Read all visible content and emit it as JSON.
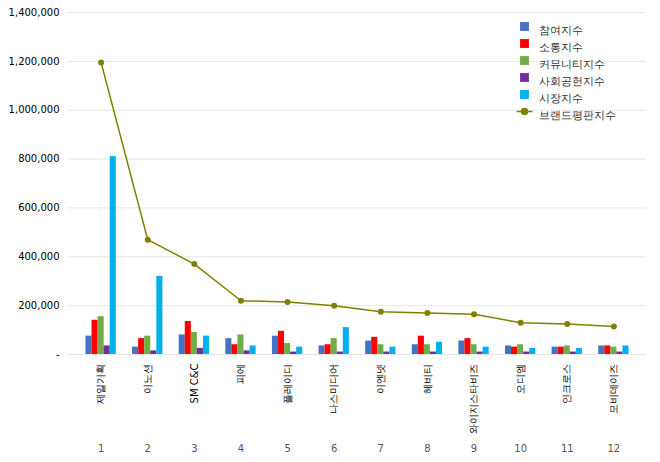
{
  "chart_data": {
    "type": "bar",
    "categories": [
      "제일기획",
      "이노션",
      "SM C&C",
      "피에",
      "플레이디",
      "나스미디어",
      "이엔넷",
      "헤비티",
      "와이지스타비즈",
      "오디엠",
      "인크로스",
      "모비데이즈"
    ],
    "ranks": [
      "1",
      "2",
      "3",
      "4",
      "5",
      "6",
      "7",
      "8",
      "9",
      "10",
      "11",
      "12"
    ],
    "series": [
      {
        "name": "참여지수",
        "color": "#4472C4",
        "values": [
          75000,
          30000,
          80000,
          65000,
          75000,
          35000,
          55000,
          40000,
          55000,
          35000,
          30000,
          35000
        ]
      },
      {
        "name": "소통지수",
        "color": "#FF0000",
        "values": [
          140000,
          65000,
          135000,
          40000,
          95000,
          40000,
          70000,
          75000,
          65000,
          30000,
          30000,
          35000
        ]
      },
      {
        "name": "커뮤니티지수",
        "color": "#70AD47",
        "values": [
          155000,
          75000,
          90000,
          80000,
          45000,
          65000,
          40000,
          40000,
          40000,
          40000,
          35000,
          30000
        ]
      },
      {
        "name": "사회공헌지수",
        "color": "#7030A0",
        "values": [
          35000,
          15000,
          25000,
          15000,
          10000,
          10000,
          10000,
          10000,
          10000,
          10000,
          10000,
          10000
        ]
      },
      {
        "name": "시장지수",
        "color": "#00B0F0",
        "values": [
          810000,
          320000,
          75000,
          35000,
          30000,
          110000,
          30000,
          50000,
          30000,
          25000,
          25000,
          35000
        ]
      },
      {
        "name": "브랜드평판지수",
        "color": "#808000",
        "type": "line",
        "marker": "circle",
        "values": [
          1195000,
          470000,
          370000,
          220000,
          215000,
          200000,
          175000,
          170000,
          165000,
          130000,
          125000,
          115000
        ]
      }
    ],
    "ylim": [
      0,
      1400000
    ],
    "yticks": [
      {
        "value": 0,
        "label": "-"
      },
      {
        "value": 200000,
        "label": "200,000"
      },
      {
        "value": 400000,
        "label": "400,000"
      },
      {
        "value": 600000,
        "label": "600,000"
      },
      {
        "value": 800000,
        "label": "800,000"
      },
      {
        "value": 1000000,
        "label": "1,000,000"
      },
      {
        "value": 1200000,
        "label": "1,200,000"
      },
      {
        "value": 1400000,
        "label": "1,400,000"
      }
    ],
    "grid": true,
    "legend": "upper right"
  }
}
